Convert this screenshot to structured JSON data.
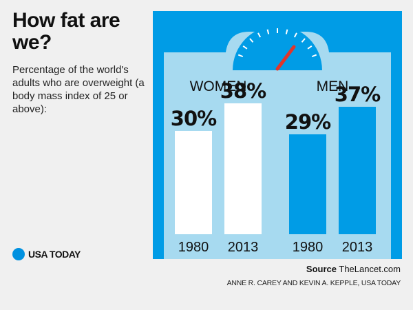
{
  "header": {
    "title": "How fat are we?",
    "subtitle": "Percentage of the world's adults who are overweight (a body mass index of 25 or above):"
  },
  "brand": {
    "name": "USA TODAY",
    "icon": "blue-dot-icon"
  },
  "footer": {
    "source_label": "Source",
    "source_value": "TheLancet.com",
    "credit": "ANNE R. CAREY AND KEVIN A. KEPPLE, USA TODAY"
  },
  "colors": {
    "panel": "#009ce6",
    "scale_body": "#a7daf0",
    "women_bar": "#ffffff",
    "men_bar": "#009ce6",
    "needle": "#e0352b"
  },
  "chart_data": {
    "type": "bar",
    "title": "",
    "xlabel": "",
    "ylabel": "",
    "ylim": [
      0,
      40
    ],
    "legend": "none",
    "grid": false,
    "groups": [
      {
        "name": "WOMEN",
        "categories": [
          "1980",
          "2013"
        ],
        "values": [
          30,
          38
        ],
        "labels": [
          "30%",
          "38%"
        ]
      },
      {
        "name": "MEN",
        "categories": [
          "1980",
          "2013"
        ],
        "values": [
          29,
          37
        ],
        "labels": [
          "29%",
          "37%"
        ]
      }
    ]
  }
}
